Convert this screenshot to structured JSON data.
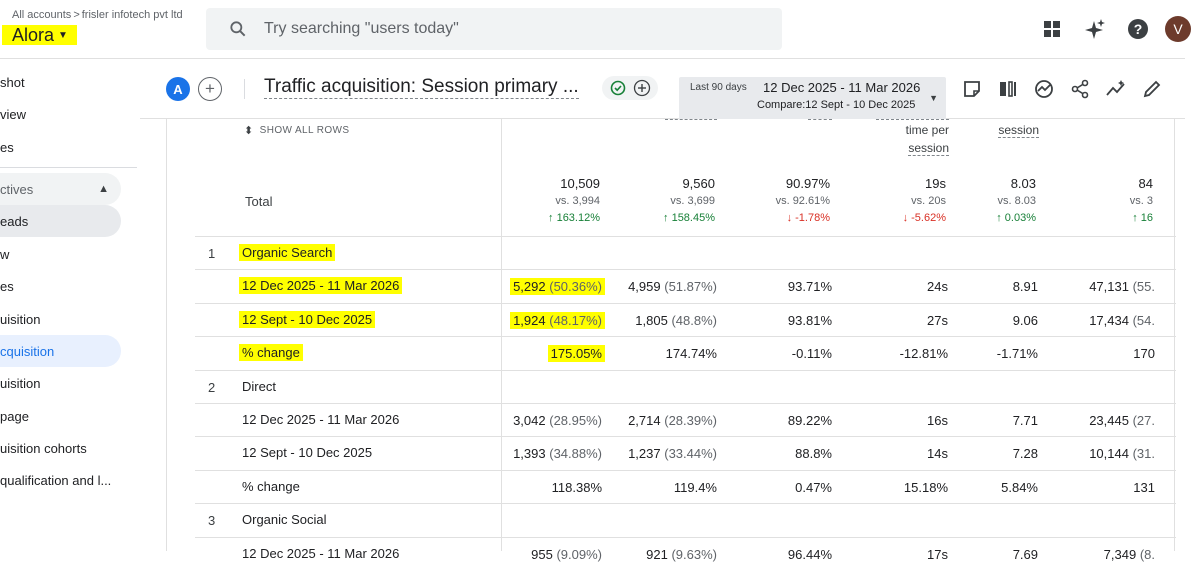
{
  "topbar": {
    "breadcrumb_root": "All accounts",
    "breadcrumb_account": "frisler infotech pvt ltd",
    "property_name": "Alora",
    "search_placeholder": "Try searching \"users today\"",
    "avatar_letter": "V"
  },
  "sidebar": {
    "items": [
      {
        "label": "shot",
        "state": "normal"
      },
      {
        "label": "view",
        "state": "normal"
      },
      {
        "label": "es",
        "state": "normal"
      },
      {
        "label": "ctives",
        "state": "section"
      },
      {
        "label": "eads",
        "state": "pill"
      },
      {
        "label": "w",
        "state": "normal"
      },
      {
        "label": "es",
        "state": "normal"
      },
      {
        "label": "uisition",
        "state": "normal"
      },
      {
        "label": "cquisition",
        "state": "active"
      },
      {
        "label": "uisition",
        "state": "normal"
      },
      {
        "label": "page",
        "state": "normal"
      },
      {
        "label": "uisition cohorts",
        "state": "normal"
      },
      {
        "label": "qualification and l...",
        "state": "normal"
      }
    ]
  },
  "report": {
    "compare_badge": "A",
    "title": "Traffic acquisition: Session primary ...",
    "date_label": "Last 90 days",
    "date_range": "12 Dec 2025 - 11 Mar 2026",
    "compare_range": "Compare:12 Sept - 10 Dec 2025"
  },
  "table": {
    "show_all_rows": "SHOW ALL ROWS",
    "headers": {
      "col4_line1": "time per",
      "col4_line2": "session",
      "col5": "session"
    },
    "total": {
      "label": "Total",
      "cols": [
        {
          "value": "10,509",
          "vs": "vs. 3,994",
          "change": "↑ 163.12%",
          "dir": "up"
        },
        {
          "value": "9,560",
          "vs": "vs. 3,699",
          "change": "↑ 158.45%",
          "dir": "up"
        },
        {
          "value": "90.97%",
          "vs": "vs. 92.61%",
          "change": "↓ -1.78%",
          "dir": "down"
        },
        {
          "value": "19s",
          "vs": "vs. 20s",
          "change": "↓ -5.62%",
          "dir": "down"
        },
        {
          "value": "8.03",
          "vs": "vs. 8.03",
          "change": "↑ 0.03%",
          "dir": "up"
        },
        {
          "value": "84",
          "vs": "vs. 3",
          "change": "↑ 16",
          "dir": "up"
        }
      ]
    },
    "rows": [
      {
        "idx": "1",
        "dim": "Organic Search",
        "type": "group",
        "hl": true,
        "cells": []
      },
      {
        "idx": "",
        "dim": "12 Dec 2025 - 11 Mar 2026",
        "type": "sub",
        "hl": true,
        "cells": [
          {
            "v": "5,292",
            "p": "(50.36%)",
            "hl": true
          },
          {
            "v": "4,959",
            "p": "(51.87%)"
          },
          {
            "v": "93.71%"
          },
          {
            "v": "24s"
          },
          {
            "v": "8.91"
          },
          {
            "v": "47,131",
            "p": "(55."
          }
        ]
      },
      {
        "idx": "",
        "dim": "12 Sept - 10 Dec 2025",
        "type": "sub",
        "hl": true,
        "cells": [
          {
            "v": "1,924",
            "p": "(48.17%)",
            "hl": true
          },
          {
            "v": "1,805",
            "p": "(48.8%)"
          },
          {
            "v": "93.81%"
          },
          {
            "v": "27s"
          },
          {
            "v": "9.06"
          },
          {
            "v": "17,434",
            "p": "(54."
          }
        ]
      },
      {
        "idx": "",
        "dim": "% change",
        "type": "sub",
        "hl": true,
        "cells": [
          {
            "v": "175.05%",
            "hl": true
          },
          {
            "v": "174.74%"
          },
          {
            "v": "-0.11%"
          },
          {
            "v": "-12.81%"
          },
          {
            "v": "-1.71%"
          },
          {
            "v": "170"
          }
        ]
      },
      {
        "idx": "2",
        "dim": "Direct",
        "type": "group",
        "hl": false,
        "cells": []
      },
      {
        "idx": "",
        "dim": "12 Dec 2025 - 11 Mar 2026",
        "type": "sub",
        "hl": false,
        "cells": [
          {
            "v": "3,042",
            "p": "(28.95%)"
          },
          {
            "v": "2,714",
            "p": "(28.39%)"
          },
          {
            "v": "89.22%"
          },
          {
            "v": "16s"
          },
          {
            "v": "7.71"
          },
          {
            "v": "23,445",
            "p": "(27."
          }
        ]
      },
      {
        "idx": "",
        "dim": "12 Sept - 10 Dec 2025",
        "type": "sub",
        "hl": false,
        "cells": [
          {
            "v": "1,393",
            "p": "(34.88%)"
          },
          {
            "v": "1,237",
            "p": "(33.44%)"
          },
          {
            "v": "88.8%"
          },
          {
            "v": "14s"
          },
          {
            "v": "7.28"
          },
          {
            "v": "10,144",
            "p": "(31."
          }
        ]
      },
      {
        "idx": "",
        "dim": "% change",
        "type": "sub",
        "hl": false,
        "cells": [
          {
            "v": "118.38%"
          },
          {
            "v": "119.4%"
          },
          {
            "v": "0.47%"
          },
          {
            "v": "15.18%"
          },
          {
            "v": "5.84%"
          },
          {
            "v": "131"
          }
        ]
      },
      {
        "idx": "3",
        "dim": "Organic Social",
        "type": "group",
        "hl": false,
        "cells": []
      },
      {
        "idx": "",
        "dim": "12 Dec 2025 - 11 Mar 2026",
        "type": "sub",
        "hl": false,
        "cells": [
          {
            "v": "955",
            "p": "(9.09%)"
          },
          {
            "v": "921",
            "p": "(9.63%)"
          },
          {
            "v": "96.44%"
          },
          {
            "v": "17s"
          },
          {
            "v": "7.69"
          },
          {
            "v": "7,349",
            "p": "(8."
          }
        ]
      }
    ]
  }
}
